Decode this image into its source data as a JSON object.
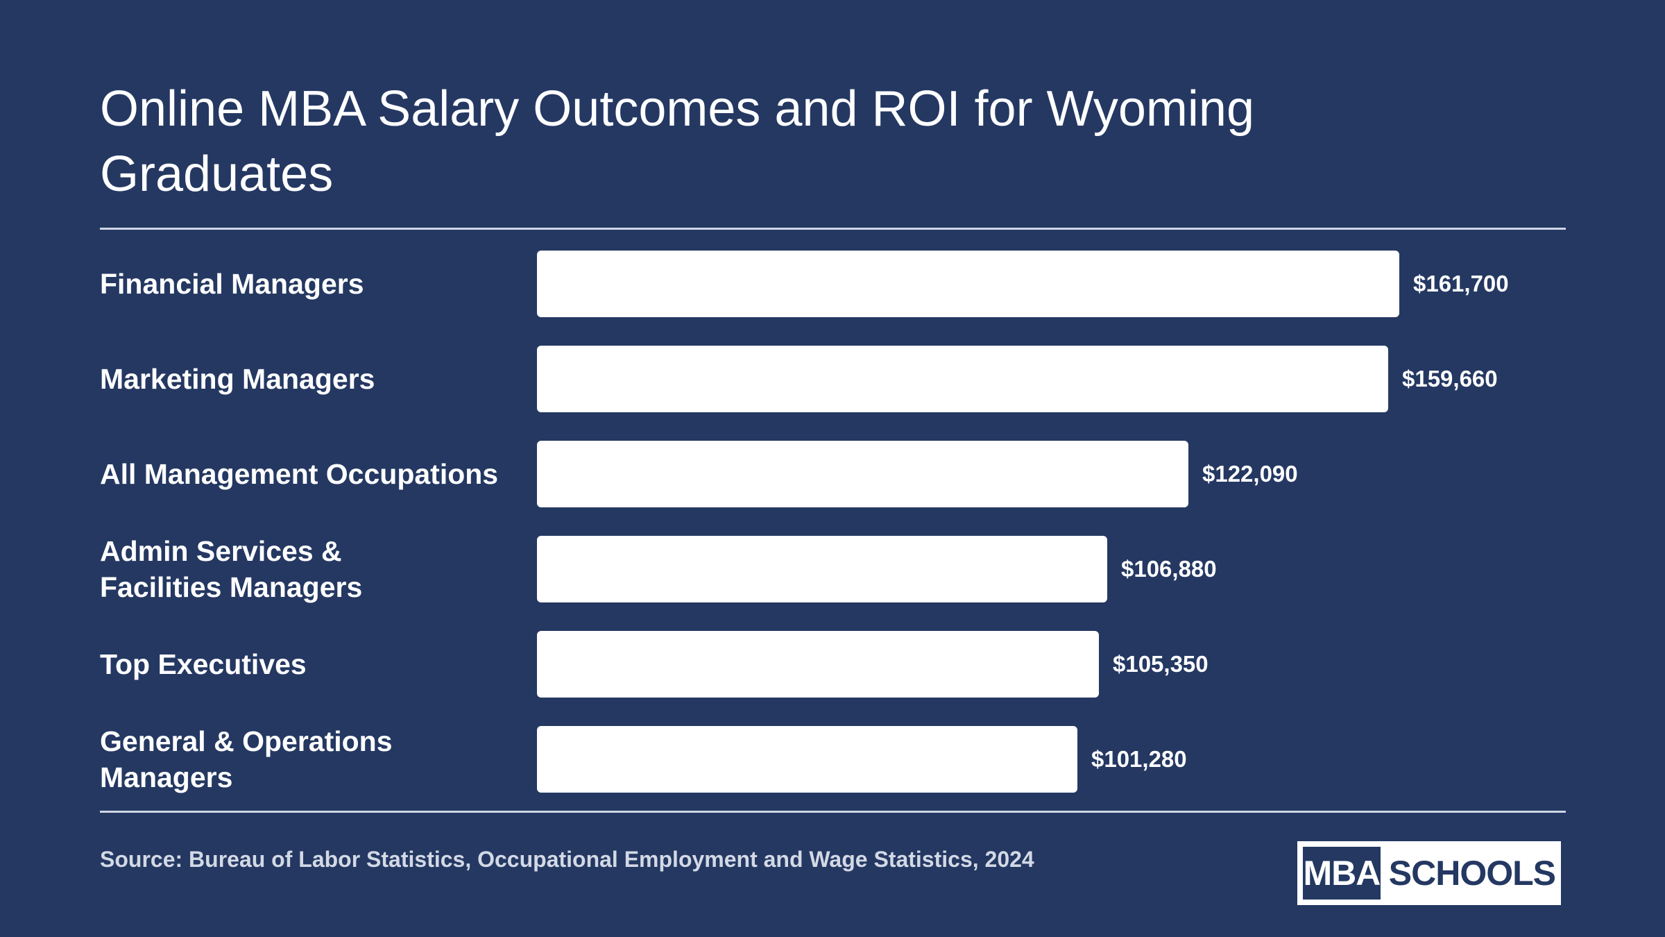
{
  "title": "Online MBA Salary Outcomes and ROI for Wyoming Graduates",
  "source": "Source: Bureau of Labor Statistics, Occupational Employment and Wage Statistics, 2024",
  "logo": {
    "part1": "MBA",
    "part2": "SCHOOLS"
  },
  "colors": {
    "background": "#243862",
    "bar": "#ffffff",
    "text": "#ffffff",
    "source_text": "#d3d9e5"
  },
  "chart_data": {
    "type": "bar",
    "orientation": "horizontal",
    "title": "Online MBA Salary Outcomes and ROI for Wyoming Graduates",
    "categories": [
      "Financial Managers",
      "Marketing Managers",
      "All Management Occupations",
      "Admin Services & Facilities Managers",
      "Top Executives",
      "General & Operations Managers"
    ],
    "values": [
      161700,
      159660,
      122090,
      106880,
      105350,
      101280
    ],
    "value_labels": [
      "$161,700",
      "$159,660",
      "$122,090",
      "$106,880",
      "$105,350",
      "$101,280"
    ],
    "xlim": [
      0,
      161700
    ],
    "grid": false,
    "legend": "none"
  }
}
